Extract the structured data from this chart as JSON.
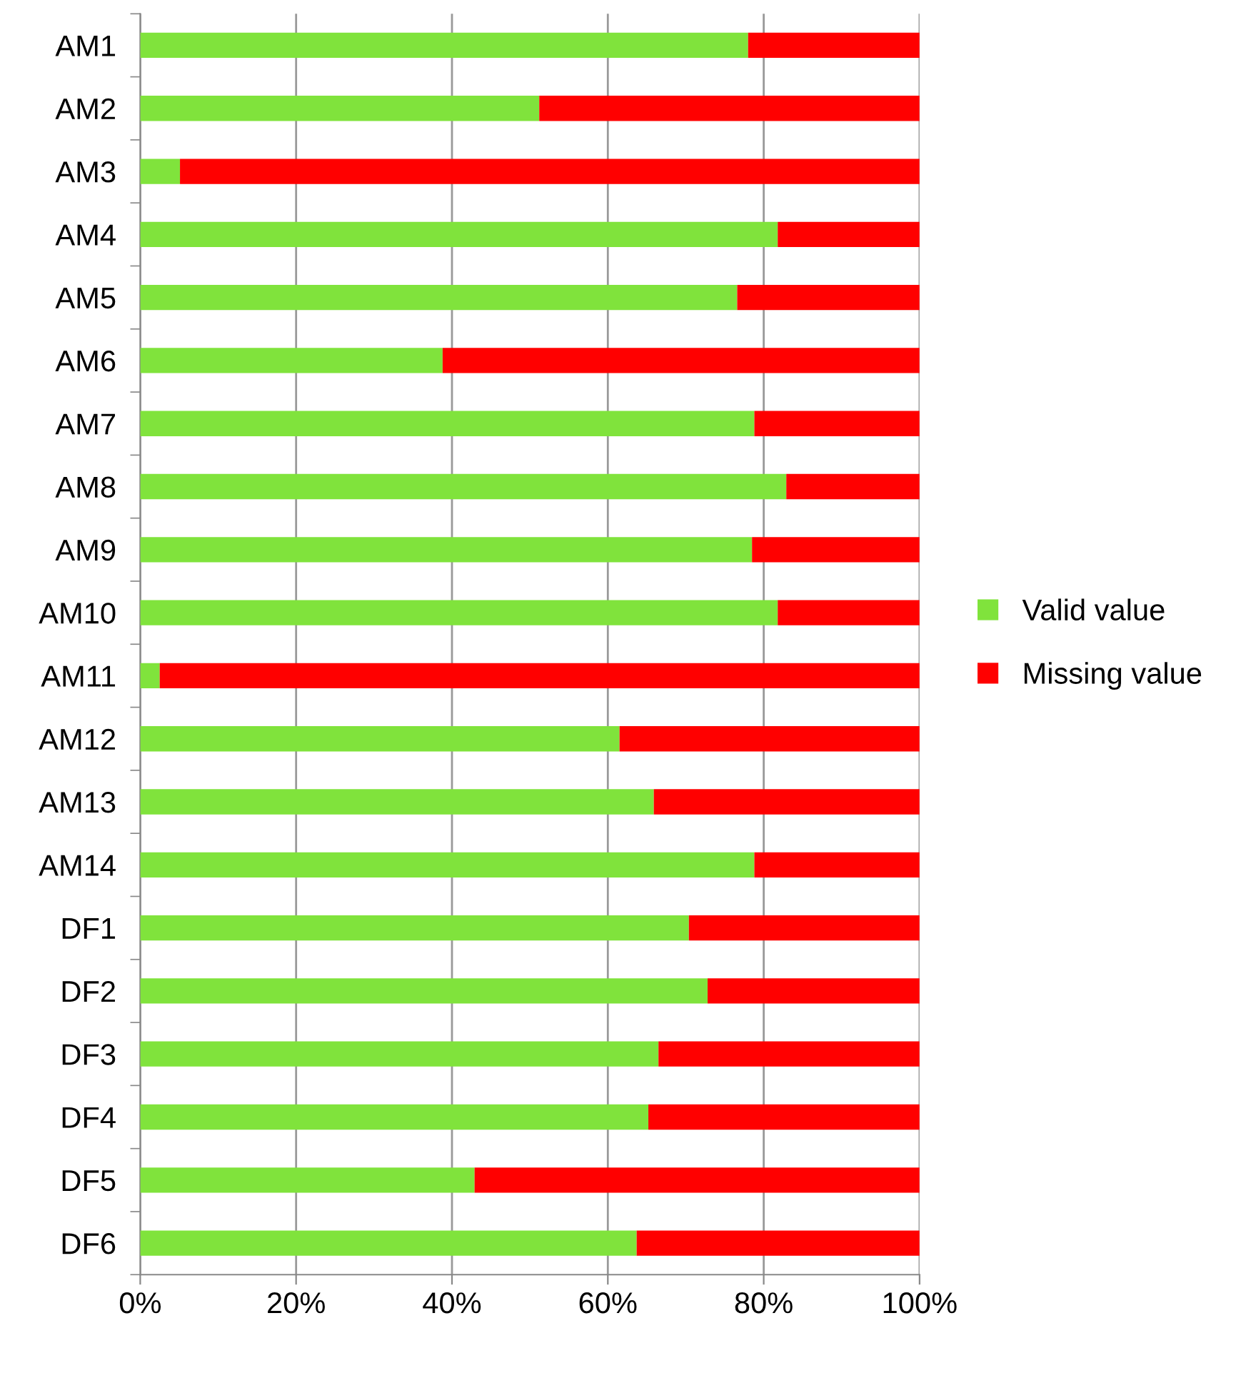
{
  "chart_data": {
    "type": "bar",
    "orientation": "horizontal",
    "stacked": true,
    "categories": [
      "AM1",
      "AM2",
      "AM3",
      "AM4",
      "AM5",
      "AM6",
      "AM7",
      "AM8",
      "AM9",
      "AM10",
      "AM11",
      "AM12",
      "AM13",
      "AM14",
      "DF1",
      "DF2",
      "DF3",
      "DF4",
      "DF5",
      "DF6"
    ],
    "series": [
      {
        "name": "Valid value",
        "color": "#80e33c",
        "values": [
          78,
          51.2,
          5.1,
          81.8,
          76.6,
          38.8,
          78.8,
          82.9,
          78.5,
          81.8,
          2.5,
          61.5,
          65.9,
          78.8,
          70.4,
          72.8,
          66.5,
          65.2,
          42.9,
          63.7
        ]
      },
      {
        "name": "Missing value",
        "color": "#ff0000",
        "values": [
          22,
          48.8,
          94.9,
          18.2,
          23.4,
          61.2,
          21.2,
          17.1,
          21.5,
          18.2,
          97.5,
          38.5,
          34.1,
          21.2,
          29.6,
          27.2,
          33.5,
          34.8,
          57.1,
          36.3
        ]
      }
    ],
    "xlim": [
      0,
      100
    ],
    "xticks": [
      {
        "value": 0,
        "label": "0%"
      },
      {
        "value": 20,
        "label": "20%"
      },
      {
        "value": 40,
        "label": "40%"
      },
      {
        "value": 60,
        "label": "60%"
      },
      {
        "value": 80,
        "label": "80%"
      },
      {
        "value": 100,
        "label": "100%"
      }
    ],
    "grid": "x",
    "legend": "right"
  }
}
